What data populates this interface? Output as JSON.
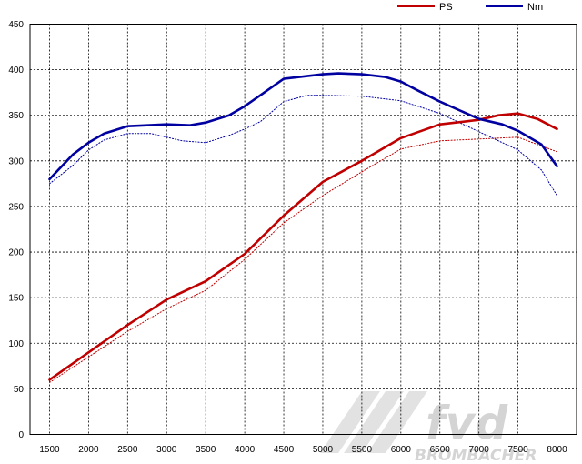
{
  "chart_data": {
    "type": "line",
    "title": "",
    "xlabel": "",
    "ylabel": "",
    "xlim": [
      1250,
      8250
    ],
    "ylim": [
      0,
      450
    ],
    "x_ticks": [
      1500,
      2000,
      2500,
      3000,
      3500,
      4000,
      4500,
      5000,
      5500,
      6000,
      6500,
      7000,
      7500,
      8000
    ],
    "y_ticks": [
      0,
      50,
      100,
      150,
      200,
      250,
      300,
      350,
      400,
      450
    ],
    "grid": true,
    "legend_position": "top-right",
    "series": [
      {
        "name": "PS",
        "color": "#c00000",
        "style": "solid",
        "x": [
          1500,
          2000,
          2500,
          3000,
          3500,
          4000,
          4500,
          5000,
          5500,
          6000,
          6500,
          7000,
          7250,
          7500,
          7750,
          8000
        ],
        "y": [
          60,
          90,
          120,
          148,
          168,
          198,
          240,
          277,
          300,
          325,
          340,
          345,
          350,
          352,
          346,
          335
        ]
      },
      {
        "name": "Nm",
        "color": "#0000a0",
        "style": "solid",
        "x": [
          1500,
          1800,
          2000,
          2200,
          2500,
          3000,
          3300,
          3500,
          3800,
          4000,
          4200,
          4500,
          5000,
          5200,
          5500,
          5800,
          6000,
          6200,
          6500,
          7000,
          7300,
          7500,
          7800,
          8000
        ],
        "y": [
          280,
          307,
          320,
          330,
          338,
          340,
          339,
          342,
          350,
          360,
          372,
          390,
          395,
          396,
          395,
          392,
          387,
          378,
          365,
          346,
          340,
          333,
          318,
          294
        ]
      },
      {
        "name": "",
        "color": "#c00000",
        "style": "dotted",
        "x": [
          1500,
          2000,
          2500,
          3000,
          3500,
          4000,
          4500,
          5000,
          5500,
          6000,
          6500,
          7000,
          7500,
          8000
        ],
        "y": [
          57,
          85,
          113,
          138,
          158,
          192,
          232,
          262,
          288,
          313,
          322,
          324,
          326,
          310
        ]
      },
      {
        "name": "",
        "color": "#0000a0",
        "style": "dotted",
        "x": [
          1500,
          1800,
          2000,
          2200,
          2500,
          2800,
          3000,
          3200,
          3500,
          3800,
          4000,
          4200,
          4500,
          4800,
          5000,
          5500,
          6000,
          6500,
          7000,
          7500,
          7800,
          8000
        ],
        "y": [
          275,
          295,
          312,
          323,
          330,
          330,
          326,
          322,
          320,
          328,
          335,
          343,
          365,
          372,
          372,
          371,
          366,
          352,
          332,
          312,
          290,
          262
        ]
      }
    ]
  },
  "watermark": {
    "logo_text": "fvd",
    "sub_text": "BROMBACHER"
  }
}
